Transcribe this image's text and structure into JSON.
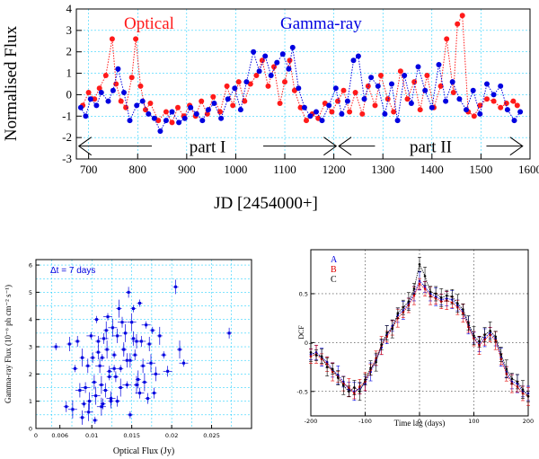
{
  "colors": {
    "optical": "#ff1a1a",
    "gamma": "#0000e0",
    "grid": "#00c8ff",
    "dcf_a": "#0000e0",
    "dcf_b": "#e00000",
    "dcf_c": "#000000"
  },
  "chart_data": [
    {
      "id": "lightcurve",
      "type": "line",
      "title": "",
      "xlabel": "JD [2454000+]",
      "ylabel": "Normalised Flux",
      "xlim": [
        675,
        1600
      ],
      "ylim": [
        -3,
        4
      ],
      "x_ticks": [
        "700",
        "800",
        "900",
        "1000",
        "1100",
        "1200",
        "1300",
        "1400",
        "1500",
        "1600"
      ],
      "y_ticks": [
        "-3",
        "-2",
        "-1",
        "0",
        "1",
        "2",
        "3",
        "4"
      ],
      "annotations": {
        "optical_label": "Optical",
        "gamma_label": "Gamma-ray",
        "part1": "part I",
        "part2": "part II"
      },
      "part_ranges": {
        "part1": [
          680,
          1205
        ],
        "part2": [
          1210,
          1585
        ]
      },
      "series": [
        {
          "name": "Optical",
          "color": "#ff1a1a",
          "x": [
            688,
            700,
            712,
            722,
            735,
            748,
            756,
            766,
            776,
            788,
            796,
            806,
            816,
            826,
            842,
            858,
            870,
            882,
            894,
            906,
            918,
            930,
            942,
            954,
            968,
            982,
            994,
            1006,
            1018,
            1030,
            1042,
            1054,
            1066,
            1078,
            1090,
            1100,
            1110,
            1120,
            1132,
            1144,
            1156,
            1168,
            1182,
            1196,
            1208,
            1220,
            1232,
            1244,
            1258,
            1270,
            1284,
            1296,
            1310,
            1322,
            1336,
            1350,
            1364,
            1376,
            1390,
            1404,
            1418,
            1430,
            1444,
            1452,
            1462,
            1474,
            1486,
            1498,
            1512,
            1526,
            1540,
            1552,
            1566,
            1574
          ],
          "y": [
            -0.5,
            0.1,
            -0.2,
            0.3,
            0.9,
            2.6,
            0.5,
            -0.3,
            -0.6,
            0.8,
            2.6,
            0.4,
            -0.7,
            -0.4,
            -1.2,
            -0.8,
            -1.3,
            -0.6,
            -1.0,
            -0.5,
            -1.0,
            -0.3,
            -0.9,
            -0.1,
            -0.8,
            0.4,
            -0.5,
            0.6,
            -0.3,
            0.5,
            0.9,
            1.6,
            0.4,
            1.3,
            -0.4,
            0.6,
            1.6,
            0.2,
            -0.6,
            -1.2,
            -0.9,
            -1.1,
            -0.4,
            -0.8,
            -0.3,
            0.2,
            -0.8,
            0.1,
            -0.9,
            0.4,
            -0.5,
            0.9,
            -0.2,
            -0.8,
            1.1,
            -0.2,
            0.6,
            -0.7,
            0.9,
            -0.6,
            0.4,
            2.6,
            0.1,
            3.3,
            3.7,
            -0.8,
            -1.0,
            -0.5,
            -0.2,
            -0.3,
            -0.6,
            -0.4,
            -0.3,
            -0.5
          ]
        },
        {
          "name": "Gamma-ray",
          "color": "#0000e0",
          "x": [
            684,
            694,
            704,
            716,
            726,
            740,
            750,
            760,
            772,
            784,
            798,
            810,
            822,
            834,
            846,
            858,
            870,
            884,
            896,
            908,
            920,
            932,
            944,
            956,
            970,
            984,
            998,
            1010,
            1022,
            1036,
            1048,
            1060,
            1072,
            1084,
            1096,
            1108,
            1116,
            1128,
            1140,
            1152,
            1164,
            1176,
            1190,
            1204,
            1216,
            1228,
            1240,
            1250,
            1262,
            1276,
            1290,
            1304,
            1318,
            1330,
            1344,
            1358,
            1372,
            1386,
            1400,
            1414,
            1428,
            1442,
            1456,
            1470,
            1484,
            1498,
            1512,
            1526,
            1540,
            1554,
            1568,
            1580
          ],
          "y": [
            -0.6,
            -1.0,
            -0.2,
            -0.5,
            0.1,
            -0.3,
            0.2,
            1.2,
            0.1,
            -1.2,
            -0.5,
            -0.3,
            -0.9,
            -1.1,
            -1.7,
            -1.2,
            -0.8,
            -1.3,
            -1.1,
            -0.6,
            -0.9,
            -1.2,
            -0.7,
            -0.4,
            -1.1,
            -0.2,
            0.3,
            -0.7,
            0.6,
            2.0,
            1.1,
            1.8,
            0.9,
            1.5,
            1.9,
            1.2,
            2.2,
            0.3,
            -0.6,
            -1.0,
            -0.8,
            -1.2,
            -0.5,
            0.3,
            -0.9,
            -0.3,
            1.6,
            1.8,
            -0.2,
            0.8,
            0.4,
            -0.9,
            0.5,
            -1.2,
            0.9,
            -0.4,
            1.3,
            0.2,
            -0.6,
            1.4,
            -0.3,
            0.6,
            -0.2,
            -0.7,
            0.2,
            -0.9,
            0.5,
            0.0,
            0.4,
            -0.7,
            -1.2,
            -0.8
          ]
        }
      ]
    },
    {
      "id": "scatter",
      "type": "scatter",
      "title": "Δt = 7 days",
      "xlabel": "Optical Flux (Jy)",
      "ylabel": "Gamma-ray Flux (10⁻⁶ ph cm⁻² s⁻¹)",
      "xlim": [
        0.003,
        0.03
      ],
      "ylim": [
        0,
        6.2
      ],
      "x_ticks": [
        "0",
        "0.006",
        "0.01",
        "0.015",
        "0.02",
        "0.025"
      ],
      "x_tick_values": [
        0.0,
        0.006,
        0.01,
        0.015,
        0.02,
        0.025
      ],
      "y_ticks": [
        "0",
        "1",
        "2",
        "3",
        "4",
        "5",
        "6"
      ],
      "series": [
        {
          "name": "7-day bins",
          "color": "#0000e0",
          "x": [
            0.0055,
            0.0068,
            0.0072,
            0.0076,
            0.0079,
            0.0082,
            0.0085,
            0.0088,
            0.009,
            0.0092,
            0.0095,
            0.0097,
            0.0099,
            0.0101,
            0.0103,
            0.0105,
            0.0106,
            0.0108,
            0.011,
            0.0112,
            0.0113,
            0.0115,
            0.0117,
            0.0119,
            0.012,
            0.0122,
            0.0124,
            0.0126,
            0.0128,
            0.013,
            0.0132,
            0.0134,
            0.0136,
            0.0138,
            0.014,
            0.0142,
            0.0144,
            0.0146,
            0.0148,
            0.015,
            0.0152,
            0.0154,
            0.0156,
            0.0158,
            0.016,
            0.0162,
            0.0164,
            0.0166,
            0.0168,
            0.017,
            0.0172,
            0.0174,
            0.0176,
            0.0178,
            0.018,
            0.0185,
            0.019,
            0.0195,
            0.0205,
            0.021,
            0.0215,
            0.0272,
            0.0088,
            0.0096,
            0.0104,
            0.0114,
            0.0124,
            0.0136,
            0.0148,
            0.016,
            0.0108,
            0.0118,
            0.0128,
            0.014,
            0.0152,
            0.0112,
            0.0122,
            0.0132,
            0.0144,
            0.0156
          ],
          "y": [
            3.0,
            0.8,
            3.1,
            0.7,
            2.2,
            3.2,
            1.4,
            2.6,
            0.9,
            1.5,
            2.3,
            1.0,
            3.4,
            2.6,
            1.7,
            1.2,
            4.0,
            3.2,
            2.3,
            1.6,
            2.6,
            3.3,
            1.4,
            2.9,
            4.1,
            2.1,
            1.0,
            3.7,
            2.7,
            1.9,
            3.4,
            4.4,
            2.2,
            3.9,
            2.9,
            3.5,
            1.6,
            5.0,
            2.5,
            3.9,
            4.4,
            2.7,
            3.2,
            1.8,
            4.6,
            3.2,
            2.3,
            1.7,
            3.8,
            1.1,
            3.1,
            2.4,
            3.6,
            1.3,
            2.0,
            3.4,
            2.7,
            2.1,
            5.2,
            2.9,
            2.4,
            3.5,
            0.4,
            0.6,
            0.3,
            0.9,
            1.1,
            1.5,
            0.5,
            1.3,
            2.8,
            3.6,
            2.2,
            2.9,
            3.3,
            0.8,
            1.9,
            1.0,
            2.5,
            1.6
          ]
        }
      ]
    },
    {
      "id": "dcf",
      "type": "line",
      "title": "",
      "xlabel": "Time lag (days)",
      "ylabel": "DCF",
      "xlim": [
        -200,
        200
      ],
      "ylim": [
        -0.75,
        0.95
      ],
      "x_ticks": [
        "-200",
        "-100",
        "0",
        "100",
        "200"
      ],
      "y_ticks": [
        "-0.5",
        "0",
        "0.5"
      ],
      "legend": [
        "A",
        "B",
        "C"
      ],
      "series": [
        {
          "name": "A",
          "color": "#0000e0",
          "x": [
            -200,
            -190,
            -180,
            -170,
            -160,
            -150,
            -140,
            -130,
            -120,
            -110,
            -100,
            -90,
            -80,
            -70,
            -60,
            -50,
            -40,
            -30,
            -20,
            -10,
            0,
            10,
            20,
            30,
            40,
            50,
            60,
            70,
            80,
            90,
            100,
            110,
            120,
            130,
            140,
            150,
            160,
            170,
            180,
            190,
            200
          ],
          "y": [
            -0.12,
            -0.1,
            -0.15,
            -0.2,
            -0.28,
            -0.33,
            -0.4,
            -0.48,
            -0.5,
            -0.47,
            -0.42,
            -0.3,
            -0.18,
            -0.05,
            0.08,
            0.17,
            0.28,
            0.33,
            0.4,
            0.5,
            0.63,
            0.57,
            0.5,
            0.47,
            0.44,
            0.45,
            0.44,
            0.38,
            0.32,
            0.18,
            0.05,
            -0.02,
            0.05,
            0.1,
            0.04,
            -0.15,
            -0.3,
            -0.4,
            -0.42,
            -0.5,
            -0.52
          ]
        },
        {
          "name": "B",
          "color": "#e00000",
          "x": [
            -200,
            -190,
            -180,
            -170,
            -160,
            -150,
            -140,
            -130,
            -120,
            -110,
            -100,
            -90,
            -80,
            -70,
            -60,
            -50,
            -40,
            -30,
            -20,
            -10,
            0,
            10,
            20,
            30,
            40,
            50,
            60,
            70,
            80,
            90,
            100,
            110,
            120,
            130,
            140,
            150,
            160,
            170,
            180,
            190,
            200
          ],
          "y": [
            -0.14,
            -0.12,
            -0.17,
            -0.22,
            -0.3,
            -0.35,
            -0.42,
            -0.46,
            -0.52,
            -0.45,
            -0.4,
            -0.28,
            -0.16,
            -0.03,
            0.06,
            0.15,
            0.25,
            0.31,
            0.38,
            0.48,
            0.6,
            0.55,
            0.48,
            0.45,
            0.42,
            0.43,
            0.41,
            0.36,
            0.3,
            0.16,
            0.04,
            -0.03,
            0.03,
            0.08,
            0.02,
            -0.17,
            -0.32,
            -0.42,
            -0.45,
            -0.52,
            -0.55
          ]
        },
        {
          "name": "C",
          "color": "#000000",
          "x": [
            -200,
            -190,
            -180,
            -170,
            -160,
            -150,
            -140,
            -130,
            -120,
            -110,
            -100,
            -90,
            -80,
            -70,
            -60,
            -50,
            -40,
            -30,
            -20,
            -10,
            0,
            10,
            20,
            30,
            40,
            50,
            60,
            70,
            80,
            90,
            100,
            110,
            120,
            130,
            140,
            150,
            160,
            170,
            180,
            190,
            200
          ],
          "y": [
            -0.1,
            -0.13,
            -0.14,
            -0.25,
            -0.27,
            -0.36,
            -0.44,
            -0.5,
            -0.46,
            -0.5,
            -0.38,
            -0.26,
            -0.2,
            -0.02,
            0.1,
            0.14,
            0.3,
            0.36,
            0.42,
            0.55,
            0.8,
            0.68,
            0.52,
            0.5,
            0.46,
            0.48,
            0.47,
            0.4,
            0.34,
            0.2,
            0.07,
            0.01,
            0.08,
            0.12,
            0.06,
            -0.12,
            -0.27,
            -0.37,
            -0.4,
            -0.48,
            -0.55
          ]
        }
      ]
    }
  ]
}
